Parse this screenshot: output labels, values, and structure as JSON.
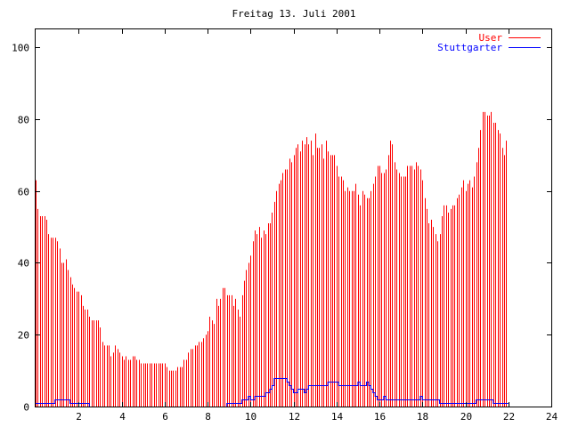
{
  "chart_data": {
    "type": "bar",
    "title": "Freitag 13. Juli 2001",
    "xlabel": "",
    "ylabel": "",
    "xlim": [
      0,
      24
    ],
    "ylim": [
      0,
      105
    ],
    "x_ticks": [
      2,
      4,
      6,
      8,
      10,
      12,
      14,
      16,
      18,
      20,
      22,
      24
    ],
    "x_tick_labels": [
      "2",
      "4",
      "6",
      "8",
      "10",
      "12",
      "14",
      "16",
      "18",
      "20",
      "22",
      "24"
    ],
    "y_ticks": [
      0,
      20,
      40,
      60,
      80,
      100
    ],
    "y_tick_labels": [
      "0",
      "20",
      "40",
      "60",
      "80",
      "100"
    ],
    "grid": false,
    "legend_position": "top-right",
    "x_step": 0.1,
    "series": [
      {
        "name": "User",
        "style": "impulses",
        "color": "#ff0000",
        "x_start": 0.0,
        "values": [
          63,
          55,
          53,
          53,
          53,
          52,
          48,
          47,
          47,
          47,
          46,
          44,
          40,
          40,
          41,
          38,
          36,
          34,
          33,
          32,
          32,
          31,
          28,
          27,
          27,
          25,
          24,
          24,
          24,
          24,
          22,
          18,
          17,
          17,
          17,
          14,
          15,
          17,
          16,
          15,
          14,
          13,
          14,
          13,
          13,
          14,
          14,
          13,
          13,
          12,
          12,
          12,
          12,
          12,
          12,
          12,
          12,
          12,
          12,
          12,
          12,
          11,
          10,
          10,
          10,
          10,
          11,
          11,
          11,
          13,
          13,
          15,
          16,
          16,
          17,
          17,
          18,
          18,
          19,
          20,
          21,
          25,
          24,
          23,
          30,
          28,
          30,
          33,
          33,
          31,
          31,
          31,
          28,
          30,
          27,
          25,
          31,
          35,
          38,
          40,
          42,
          46,
          49,
          48,
          50,
          47,
          49,
          48,
          51,
          51,
          54,
          57,
          60,
          62,
          63,
          65,
          66,
          66,
          69,
          68,
          70,
          72,
          73,
          71,
          74,
          73,
          75,
          73,
          74,
          70,
          76,
          72,
          72,
          73,
          69,
          74,
          71,
          70,
          70,
          70,
          67,
          64,
          64,
          63,
          60,
          61,
          60,
          60,
          60,
          62,
          59,
          56,
          60,
          59,
          58,
          58,
          60,
          62,
          64,
          67,
          67,
          65,
          65,
          66,
          70,
          74,
          73,
          68,
          66,
          65,
          64,
          64,
          64,
          67,
          67,
          67,
          66,
          68,
          67,
          66,
          63,
          58,
          55,
          51,
          52,
          50,
          48,
          46,
          48,
          53,
          56,
          56,
          54,
          55,
          56,
          56,
          58,
          59,
          61,
          63,
          60,
          62,
          63,
          61,
          64,
          68,
          72,
          77,
          82,
          82,
          81,
          81,
          82,
          79,
          79,
          77,
          76,
          72,
          70,
          74
        ]
      },
      {
        "name": "Stuttgarter",
        "style": "steps",
        "color": "#0000ff",
        "x_start": 0.0,
        "values": [
          1,
          1,
          1,
          1,
          1,
          1,
          1,
          1,
          1,
          2,
          2,
          2,
          2,
          2,
          2,
          2,
          1,
          1,
          1,
          1,
          1,
          1,
          1,
          1,
          1,
          0,
          0,
          0,
          0,
          0,
          0,
          0,
          0,
          0,
          0,
          0,
          0,
          0,
          0,
          0,
          0,
          0,
          0,
          0,
          0,
          0,
          0,
          0,
          0,
          0,
          0,
          0,
          0,
          0,
          0,
          0,
          0,
          0,
          0,
          0,
          0,
          0,
          0,
          0,
          0,
          0,
          0,
          0,
          0,
          0,
          0,
          0,
          0,
          0,
          0,
          0,
          0,
          0,
          0,
          0,
          0,
          0,
          0,
          0,
          0,
          0,
          0,
          0,
          0,
          1,
          1,
          1,
          1,
          1,
          1,
          1,
          2,
          2,
          2,
          3,
          2,
          2,
          3,
          3,
          3,
          3,
          3,
          4,
          4,
          5,
          6,
          8,
          8,
          8,
          8,
          8,
          8,
          7,
          6,
          5,
          4,
          4,
          5,
          5,
          5,
          4,
          5,
          6,
          6,
          6,
          6,
          6,
          6,
          6,
          6,
          6,
          7,
          7,
          7,
          7,
          7,
          6,
          6,
          6,
          6,
          6,
          6,
          6,
          6,
          6,
          7,
          6,
          6,
          6,
          7,
          6,
          5,
          4,
          3,
          2,
          2,
          2,
          3,
          2,
          2,
          2,
          2,
          2,
          2,
          2,
          2,
          2,
          2,
          2,
          2,
          2,
          2,
          2,
          2,
          3,
          2,
          2,
          2,
          2,
          2,
          2,
          2,
          2,
          1,
          1,
          1,
          1,
          1,
          1,
          1,
          1,
          1,
          1,
          1,
          1,
          1,
          1,
          1,
          1,
          1,
          2,
          2,
          2,
          2,
          2,
          2,
          2,
          2,
          1,
          1,
          1,
          1,
          1,
          1,
          1
        ]
      }
    ]
  }
}
